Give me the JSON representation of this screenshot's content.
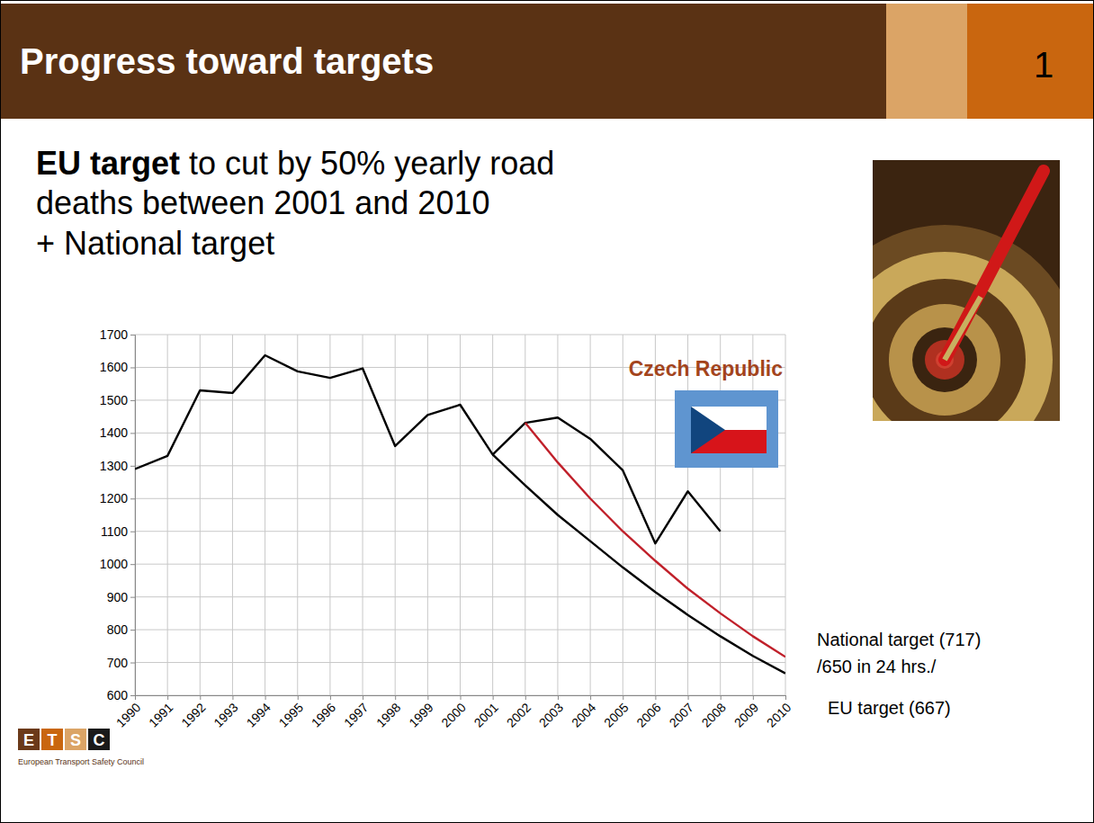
{
  "header": {
    "title": "Progress toward targets",
    "page": "1"
  },
  "subtitle": {
    "bold": "EU target",
    "lines": [
      " to cut by 50% yearly road",
      "deaths between 2001 and 2010",
      "+ National target"
    ]
  },
  "logo": {
    "letters": [
      "E",
      "T",
      "S",
      "C"
    ],
    "caption": "European Transport Safety Council"
  },
  "chart_data": {
    "type": "line",
    "x": [
      1990,
      1991,
      1992,
      1993,
      1994,
      1995,
      1996,
      1997,
      1998,
      1999,
      2000,
      2001,
      2002,
      2003,
      2004,
      2005,
      2006,
      2007,
      2008,
      2009,
      2010
    ],
    "xlim": [
      1990,
      2010
    ],
    "xticks": [
      1990,
      1991,
      1992,
      1993,
      1994,
      1995,
      1996,
      1997,
      1998,
      1999,
      2000,
      2001,
      2002,
      2003,
      2004,
      2005,
      2006,
      2007,
      2008,
      2009,
      2010
    ],
    "ylim": [
      600,
      1700
    ],
    "yticks": [
      600,
      700,
      800,
      900,
      1000,
      1100,
      1200,
      1300,
      1400,
      1500,
      1600,
      1700
    ],
    "grid": true,
    "series": [
      {
        "name": "Czech Republic",
        "color": "#000000",
        "values": [
          1290,
          1330,
          1530,
          1522,
          1637,
          1588,
          1568,
          1597,
          1360,
          1455,
          1486,
          1334,
          1431,
          1447,
          1382,
          1286,
          1063,
          1222,
          1100,
          null,
          null
        ]
      },
      {
        "name": "National target (717)",
        "color": "#c0202a",
        "values": [
          null,
          null,
          null,
          null,
          null,
          null,
          null,
          null,
          null,
          null,
          null,
          null,
          1431,
          1310,
          1200,
          1100,
          1010,
          925,
          850,
          780,
          717
        ]
      },
      {
        "name": "EU target (667)",
        "color": "#000000",
        "values": [
          null,
          null,
          null,
          null,
          null,
          null,
          null,
          null,
          null,
          null,
          null,
          1334,
          1240,
          1150,
          1070,
          990,
          915,
          845,
          780,
          720,
          667
        ]
      }
    ],
    "annotation": "/650 in 24 hrs./"
  }
}
